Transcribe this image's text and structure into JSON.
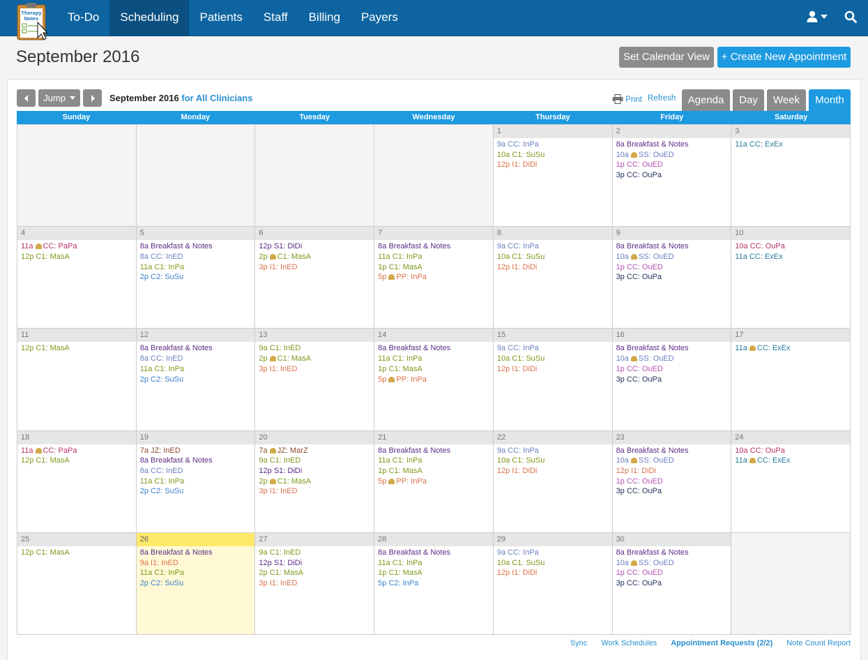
{
  "nav": {
    "logo_line1": "Therapy",
    "logo_line2": "Notes",
    "items": [
      "To-Do",
      "Scheduling",
      "Patients",
      "Staff",
      "Billing",
      "Payers"
    ],
    "active_index": 1
  },
  "page": {
    "title": "September 2016",
    "set_view_label": "Set Calendar View",
    "create_label": "+ Create New Appointment"
  },
  "toolbar": {
    "jump_label": "Jump",
    "heading_month": "September 2016",
    "heading_who": "for All Clinicians",
    "print_label": "Print",
    "refresh_label": "Refresh",
    "views": [
      "Agenda",
      "Day",
      "Week",
      "Month"
    ],
    "active_view": "Month"
  },
  "colors": {
    "nav_bg": "#0d64a0",
    "accent": "#1d9ae0",
    "today": "#fff9d6",
    "purple": "#5b2c86",
    "bluegray": "#6a7fc0",
    "green": "#7a9a1a",
    "orange": "#d9714a",
    "pink": "#b452b4",
    "navy": "#1f2f5a",
    "teal": "#2a7a9a",
    "brown": "#8a4a2a",
    "blue": "#3a80c8",
    "red": "#b8306a"
  },
  "calendar": {
    "weekdays": [
      "Sunday",
      "Monday",
      "Tuesday",
      "Wednesday",
      "Thursday",
      "Friday",
      "Saturday"
    ],
    "today": 26,
    "weeks": [
      [
        {
          "day": null,
          "events": []
        },
        {
          "day": null,
          "events": []
        },
        {
          "day": null,
          "events": []
        },
        {
          "day": null,
          "events": []
        },
        {
          "day": "1",
          "events": [
            {
              "time": "9a",
              "text": "CC: InPa",
              "color": "bluegray"
            },
            {
              "time": "10a",
              "text": "C1: SuSu",
              "color": "green"
            },
            {
              "time": "12p",
              "text": "I1: DiDi",
              "color": "orange"
            }
          ]
        },
        {
          "day": "2",
          "events": [
            {
              "time": "8a",
              "text": "Breakfast & Notes",
              "color": "purple"
            },
            {
              "time": "10a",
              "text": "SS: OuED",
              "color": "bluegray",
              "bell": true
            },
            {
              "time": "1p",
              "text": "CC: OuED",
              "color": "pink"
            },
            {
              "time": "3p",
              "text": "CC: OuPa",
              "color": "navy"
            }
          ]
        },
        {
          "day": "3",
          "events": [
            {
              "time": "11a",
              "text": "CC: ExEx",
              "color": "teal"
            }
          ]
        }
      ],
      [
        {
          "day": "4",
          "events": [
            {
              "time": "11a",
              "text": "CC: PaPa",
              "color": "red",
              "bell": true
            },
            {
              "time": "12p",
              "text": "C1: MasA",
              "color": "green"
            }
          ]
        },
        {
          "day": "5",
          "events": [
            {
              "time": "8a",
              "text": "Breakfast & Notes",
              "color": "purple"
            },
            {
              "time": "8a",
              "text": "CC: InED",
              "color": "bluegray"
            },
            {
              "time": "11a",
              "text": "C1: InPa",
              "color": "green"
            },
            {
              "time": "2p",
              "text": "C2: SuSu",
              "color": "blue"
            }
          ]
        },
        {
          "day": "6",
          "events": [
            {
              "time": "12p",
              "text": "S1: DiDi",
              "color": "purple"
            },
            {
              "time": "2p",
              "text": "C1: MasA",
              "color": "green",
              "bell": true
            },
            {
              "time": "3p",
              "text": "I1: InED",
              "color": "orange"
            }
          ]
        },
        {
          "day": "7",
          "events": [
            {
              "time": "8a",
              "text": "Breakfast & Notes",
              "color": "purple"
            },
            {
              "time": "11a",
              "text": "C1: InPa",
              "color": "green"
            },
            {
              "time": "1p",
              "text": "C1: MasA",
              "color": "green"
            },
            {
              "time": "5p",
              "text": "PP: InPa",
              "color": "orange",
              "bell": true
            }
          ]
        },
        {
          "day": "8",
          "events": [
            {
              "time": "9a",
              "text": "CC: InPa",
              "color": "bluegray"
            },
            {
              "time": "10a",
              "text": "C1: SuSu",
              "color": "green"
            },
            {
              "time": "12p",
              "text": "I1: DiDi",
              "color": "orange"
            }
          ]
        },
        {
          "day": "9",
          "events": [
            {
              "time": "8a",
              "text": "Breakfast & Notes",
              "color": "purple"
            },
            {
              "time": "10a",
              "text": "SS: OuED",
              "color": "bluegray",
              "bell": true
            },
            {
              "time": "1p",
              "text": "CC: OuED",
              "color": "pink"
            },
            {
              "time": "3p",
              "text": "CC: OuPa",
              "color": "navy"
            }
          ]
        },
        {
          "day": "10",
          "events": [
            {
              "time": "10a",
              "text": "CC: OuPa",
              "color": "red"
            },
            {
              "time": "11a",
              "text": "CC: ExEx",
              "color": "teal"
            }
          ]
        }
      ],
      [
        {
          "day": "11",
          "events": [
            {
              "time": "12p",
              "text": "C1: MasA",
              "color": "green"
            }
          ]
        },
        {
          "day": "12",
          "events": [
            {
              "time": "8a",
              "text": "Breakfast & Notes",
              "color": "purple"
            },
            {
              "time": "8a",
              "text": "CC: InED",
              "color": "bluegray"
            },
            {
              "time": "11a",
              "text": "C1: InPa",
              "color": "green"
            },
            {
              "time": "2p",
              "text": "C2: SuSu",
              "color": "blue"
            }
          ]
        },
        {
          "day": "13",
          "events": [
            {
              "time": "9a",
              "text": "C1: InED",
              "color": "green"
            },
            {
              "time": "2p",
              "text": "C1: MasA",
              "color": "green",
              "bell": true
            },
            {
              "time": "3p",
              "text": "I1: InED",
              "color": "orange"
            }
          ]
        },
        {
          "day": "14",
          "events": [
            {
              "time": "8a",
              "text": "Breakfast & Notes",
              "color": "purple"
            },
            {
              "time": "11a",
              "text": "C1: InPa",
              "color": "green"
            },
            {
              "time": "1p",
              "text": "C1: MasA",
              "color": "green"
            },
            {
              "time": "5p",
              "text": "PP: InPa",
              "color": "orange",
              "bell": true
            }
          ]
        },
        {
          "day": "15",
          "events": [
            {
              "time": "9a",
              "text": "CC: InPa",
              "color": "bluegray"
            },
            {
              "time": "10a",
              "text": "C1: SuSu",
              "color": "green"
            },
            {
              "time": "12p",
              "text": "I1: DiDi",
              "color": "orange"
            }
          ]
        },
        {
          "day": "16",
          "events": [
            {
              "time": "8a",
              "text": "Breakfast & Notes",
              "color": "purple"
            },
            {
              "time": "10a",
              "text": "SS: OuED",
              "color": "bluegray",
              "bell": true
            },
            {
              "time": "1p",
              "text": "CC: OuED",
              "color": "pink"
            },
            {
              "time": "3p",
              "text": "CC: OuPa",
              "color": "navy"
            }
          ]
        },
        {
          "day": "17",
          "events": [
            {
              "time": "11a",
              "text": "CC: ExEx",
              "color": "teal",
              "bell": true
            }
          ]
        }
      ],
      [
        {
          "day": "18",
          "events": [
            {
              "time": "11a",
              "text": "CC: PaPa",
              "color": "red",
              "bell": true
            },
            {
              "time": "12p",
              "text": "C1: MasA",
              "color": "green"
            }
          ]
        },
        {
          "day": "19",
          "events": [
            {
              "time": "7a",
              "text": "JZ: InED",
              "color": "brown"
            },
            {
              "time": "8a",
              "text": "Breakfast & Notes",
              "color": "purple"
            },
            {
              "time": "8a",
              "text": "CC: InED",
              "color": "bluegray"
            },
            {
              "time": "11a",
              "text": "C1: InPa",
              "color": "green"
            },
            {
              "time": "2p",
              "text": "C2: SuSu",
              "color": "blue"
            }
          ]
        },
        {
          "day": "20",
          "events": [
            {
              "time": "7a",
              "text": "JZ: MarZ",
              "color": "brown",
              "bell": true
            },
            {
              "time": "9a",
              "text": "C1: InED",
              "color": "green"
            },
            {
              "time": "12p",
              "text": "S1: DiDi",
              "color": "purple"
            },
            {
              "time": "2p",
              "text": "C1: MasA",
              "color": "green",
              "bell": true
            },
            {
              "time": "3p",
              "text": "I1: InED",
              "color": "orange"
            }
          ]
        },
        {
          "day": "21",
          "events": [
            {
              "time": "8a",
              "text": "Breakfast & Notes",
              "color": "purple"
            },
            {
              "time": "11a",
              "text": "C1: InPa",
              "color": "green"
            },
            {
              "time": "1p",
              "text": "C1: MasA",
              "color": "green"
            },
            {
              "time": "5p",
              "text": "PP: InPa",
              "color": "orange",
              "bell": true
            }
          ]
        },
        {
          "day": "22",
          "events": [
            {
              "time": "9a",
              "text": "CC: InPa",
              "color": "bluegray"
            },
            {
              "time": "10a",
              "text": "C1: SuSu",
              "color": "green"
            },
            {
              "time": "12p",
              "text": "I1: DiDi",
              "color": "orange"
            }
          ]
        },
        {
          "day": "23",
          "events": [
            {
              "time": "8a",
              "text": "Breakfast & Notes",
              "color": "purple"
            },
            {
              "time": "10a",
              "text": "SS: OuED",
              "color": "bluegray",
              "bell": true
            },
            {
              "time": "12p",
              "text": "I1: DiDi",
              "color": "orange"
            },
            {
              "time": "1p",
              "text": "CC: OuED",
              "color": "pink"
            },
            {
              "time": "3p",
              "text": "CC: OuPa",
              "color": "navy"
            }
          ]
        },
        {
          "day": "24",
          "events": [
            {
              "time": "10a",
              "text": "CC: OuPa",
              "color": "red"
            },
            {
              "time": "11a",
              "text": "CC: ExEx",
              "color": "teal",
              "bell": true
            }
          ]
        }
      ],
      [
        {
          "day": "25",
          "events": [
            {
              "time": "12p",
              "text": "C1: MasA",
              "color": "green"
            }
          ]
        },
        {
          "day": "26",
          "events": [
            {
              "time": "8a",
              "text": "Breakfast & Notes",
              "color": "purple"
            },
            {
              "time": "9a",
              "text": "I1: InED",
              "color": "orange"
            },
            {
              "time": "11a",
              "text": "C1: InPa",
              "color": "green"
            },
            {
              "time": "2p",
              "text": "C2: SuSu",
              "color": "blue"
            }
          ]
        },
        {
          "day": "27",
          "events": [
            {
              "time": "9a",
              "text": "C1: InED",
              "color": "green"
            },
            {
              "time": "12p",
              "text": "S1: DiDi",
              "color": "purple"
            },
            {
              "time": "2p",
              "text": "C1: MasA",
              "color": "green"
            },
            {
              "time": "3p",
              "text": "I1: InED",
              "color": "orange"
            }
          ]
        },
        {
          "day": "28",
          "events": [
            {
              "time": "8a",
              "text": "Breakfast & Notes",
              "color": "purple"
            },
            {
              "time": "11a",
              "text": "C1: InPa",
              "color": "green"
            },
            {
              "time": "1p",
              "text": "C1: MasA",
              "color": "green"
            },
            {
              "time": "5p",
              "text": "C2: InPa",
              "color": "blue"
            }
          ]
        },
        {
          "day": "29",
          "events": [
            {
              "time": "9a",
              "text": "CC: InPa",
              "color": "bluegray"
            },
            {
              "time": "10a",
              "text": "C1: SuSu",
              "color": "green"
            },
            {
              "time": "12p",
              "text": "I1: DiDi",
              "color": "orange"
            }
          ]
        },
        {
          "day": "30",
          "events": [
            {
              "time": "8a",
              "text": "Breakfast & Notes",
              "color": "purple"
            },
            {
              "time": "10a",
              "text": "SS: OuED",
              "color": "bluegray",
              "bell": true
            },
            {
              "time": "1p",
              "text": "CC: OuED",
              "color": "pink"
            },
            {
              "time": "3p",
              "text": "CC: OuPa",
              "color": "navy"
            }
          ]
        },
        {
          "day": null,
          "events": []
        }
      ]
    ]
  },
  "footer": {
    "links": [
      "Sync",
      "Work Schedules",
      "Appointment Requests (2/2)",
      "Note Count Report"
    ]
  }
}
